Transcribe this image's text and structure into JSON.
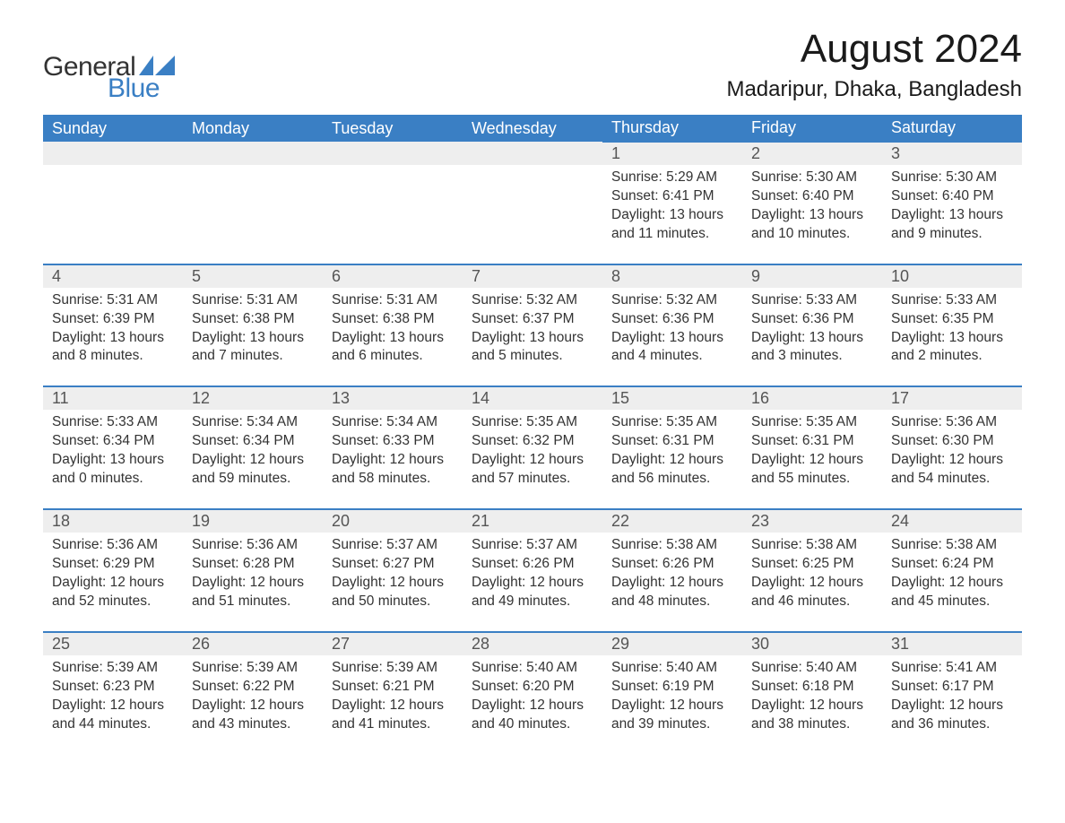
{
  "brand": {
    "word1": "General",
    "word2": "Blue",
    "accent_color": "#3a7fc4"
  },
  "title": "August 2024",
  "location": "Madaripur, Dhaka, Bangladesh",
  "colors": {
    "header_bg": "#3a7fc4",
    "header_text": "#ffffff",
    "daynum_bg": "#eeeeee",
    "body_text": "#333333",
    "page_bg": "#ffffff"
  },
  "day_names": [
    "Sunday",
    "Monday",
    "Tuesday",
    "Wednesday",
    "Thursday",
    "Friday",
    "Saturday"
  ],
  "weeks": [
    [
      null,
      null,
      null,
      null,
      {
        "n": "1",
        "sr": "5:29 AM",
        "ss": "6:41 PM",
        "dl": "13 hours and 11 minutes."
      },
      {
        "n": "2",
        "sr": "5:30 AM",
        "ss": "6:40 PM",
        "dl": "13 hours and 10 minutes."
      },
      {
        "n": "3",
        "sr": "5:30 AM",
        "ss": "6:40 PM",
        "dl": "13 hours and 9 minutes."
      }
    ],
    [
      {
        "n": "4",
        "sr": "5:31 AM",
        "ss": "6:39 PM",
        "dl": "13 hours and 8 minutes."
      },
      {
        "n": "5",
        "sr": "5:31 AM",
        "ss": "6:38 PM",
        "dl": "13 hours and 7 minutes."
      },
      {
        "n": "6",
        "sr": "5:31 AM",
        "ss": "6:38 PM",
        "dl": "13 hours and 6 minutes."
      },
      {
        "n": "7",
        "sr": "5:32 AM",
        "ss": "6:37 PM",
        "dl": "13 hours and 5 minutes."
      },
      {
        "n": "8",
        "sr": "5:32 AM",
        "ss": "6:36 PM",
        "dl": "13 hours and 4 minutes."
      },
      {
        "n": "9",
        "sr": "5:33 AM",
        "ss": "6:36 PM",
        "dl": "13 hours and 3 minutes."
      },
      {
        "n": "10",
        "sr": "5:33 AM",
        "ss": "6:35 PM",
        "dl": "13 hours and 2 minutes."
      }
    ],
    [
      {
        "n": "11",
        "sr": "5:33 AM",
        "ss": "6:34 PM",
        "dl": "13 hours and 0 minutes."
      },
      {
        "n": "12",
        "sr": "5:34 AM",
        "ss": "6:34 PM",
        "dl": "12 hours and 59 minutes."
      },
      {
        "n": "13",
        "sr": "5:34 AM",
        "ss": "6:33 PM",
        "dl": "12 hours and 58 minutes."
      },
      {
        "n": "14",
        "sr": "5:35 AM",
        "ss": "6:32 PM",
        "dl": "12 hours and 57 minutes."
      },
      {
        "n": "15",
        "sr": "5:35 AM",
        "ss": "6:31 PM",
        "dl": "12 hours and 56 minutes."
      },
      {
        "n": "16",
        "sr": "5:35 AM",
        "ss": "6:31 PM",
        "dl": "12 hours and 55 minutes."
      },
      {
        "n": "17",
        "sr": "5:36 AM",
        "ss": "6:30 PM",
        "dl": "12 hours and 54 minutes."
      }
    ],
    [
      {
        "n": "18",
        "sr": "5:36 AM",
        "ss": "6:29 PM",
        "dl": "12 hours and 52 minutes."
      },
      {
        "n": "19",
        "sr": "5:36 AM",
        "ss": "6:28 PM",
        "dl": "12 hours and 51 minutes."
      },
      {
        "n": "20",
        "sr": "5:37 AM",
        "ss": "6:27 PM",
        "dl": "12 hours and 50 minutes."
      },
      {
        "n": "21",
        "sr": "5:37 AM",
        "ss": "6:26 PM",
        "dl": "12 hours and 49 minutes."
      },
      {
        "n": "22",
        "sr": "5:38 AM",
        "ss": "6:26 PM",
        "dl": "12 hours and 48 minutes."
      },
      {
        "n": "23",
        "sr": "5:38 AM",
        "ss": "6:25 PM",
        "dl": "12 hours and 46 minutes."
      },
      {
        "n": "24",
        "sr": "5:38 AM",
        "ss": "6:24 PM",
        "dl": "12 hours and 45 minutes."
      }
    ],
    [
      {
        "n": "25",
        "sr": "5:39 AM",
        "ss": "6:23 PM",
        "dl": "12 hours and 44 minutes."
      },
      {
        "n": "26",
        "sr": "5:39 AM",
        "ss": "6:22 PM",
        "dl": "12 hours and 43 minutes."
      },
      {
        "n": "27",
        "sr": "5:39 AM",
        "ss": "6:21 PM",
        "dl": "12 hours and 41 minutes."
      },
      {
        "n": "28",
        "sr": "5:40 AM",
        "ss": "6:20 PM",
        "dl": "12 hours and 40 minutes."
      },
      {
        "n": "29",
        "sr": "5:40 AM",
        "ss": "6:19 PM",
        "dl": "12 hours and 39 minutes."
      },
      {
        "n": "30",
        "sr": "5:40 AM",
        "ss": "6:18 PM",
        "dl": "12 hours and 38 minutes."
      },
      {
        "n": "31",
        "sr": "5:41 AM",
        "ss": "6:17 PM",
        "dl": "12 hours and 36 minutes."
      }
    ]
  ],
  "labels": {
    "sunrise": "Sunrise: ",
    "sunset": "Sunset: ",
    "daylight": "Daylight: "
  }
}
